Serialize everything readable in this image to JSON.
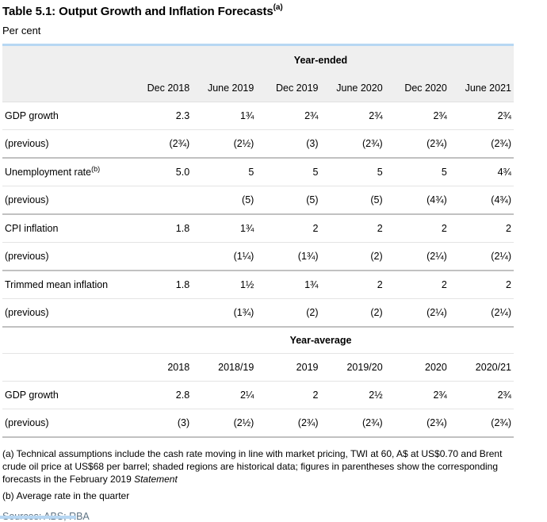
{
  "page": {
    "title": "Table 5.1: Output Growth and Inflation Forecasts",
    "title_footnote_marker": "(a)",
    "subtitle": "Per cent"
  },
  "table": {
    "sections": [
      {
        "header": "Year-ended",
        "columns": [
          "Dec 2018",
          "June 2019",
          "Dec 2019",
          "June 2020",
          "Dec 2020",
          "June 2021"
        ],
        "rows": [
          {
            "label": "GDP growth",
            "label_sup": "",
            "values": [
              "2.3",
              "1¾",
              "2¾",
              "2¾",
              "2¾",
              "2¾"
            ]
          },
          {
            "label": "(previous)",
            "label_sup": "",
            "values": [
              "(2¾)",
              "(2½)",
              "(3)",
              "(2¾)",
              "(2¾)",
              "(2¾)"
            ]
          },
          {
            "label": "Unemployment rate",
            "label_sup": "(b)",
            "values": [
              "5.0",
              "5",
              "5",
              "5",
              "5",
              "4¾"
            ]
          },
          {
            "label": "(previous)",
            "label_sup": "",
            "values": [
              "",
              "(5)",
              "(5)",
              "(5)",
              "(4¾)",
              "(4¾)"
            ]
          },
          {
            "label": "CPI inflation",
            "label_sup": "",
            "values": [
              "1.8",
              "1¾",
              "2",
              "2",
              "2",
              "2"
            ]
          },
          {
            "label": "(previous)",
            "label_sup": "",
            "values": [
              "",
              "(1¼)",
              "(1¾)",
              "(2)",
              "(2¼)",
              "(2¼)"
            ]
          },
          {
            "label": "Trimmed mean inflation",
            "label_sup": "",
            "values": [
              "1.8",
              "1½",
              "1¾",
              "2",
              "2",
              "2"
            ]
          },
          {
            "label": "(previous)",
            "label_sup": "",
            "values": [
              "",
              "(1¾)",
              "(2)",
              "(2)",
              "(2¼)",
              "(2¼)"
            ]
          }
        ]
      },
      {
        "header": "Year-average",
        "columns": [
          "2018",
          "2018/19",
          "2019",
          "2019/20",
          "2020",
          "2020/21"
        ],
        "rows": [
          {
            "label": "GDP growth",
            "label_sup": "",
            "values": [
              "2.8",
              "2¼",
              "2",
              "2½",
              "2¾",
              "2¾"
            ]
          },
          {
            "label": "(previous)",
            "label_sup": "",
            "values": [
              "(3)",
              "(2½)",
              "(2¾)",
              "(2¾)",
              "(2¾)",
              "(2¾)"
            ]
          }
        ]
      }
    ]
  },
  "footnotes": [
    {
      "marker": "(a)",
      "text": "Technical assumptions include the cash rate moving in line with market pricing, TWI at 60, A$ at US$0.70 and Brent crude oil price at US$68 per barrel; shaded regions are historical data; figures in parentheses show the corresponding forecasts in the February 2019 ",
      "italic_text": "Statement"
    },
    {
      "marker": "(b)",
      "text": "Average rate in the quarter",
      "italic_text": ""
    }
  ],
  "sources": "Sources: ABS; RBA",
  "colors": {
    "accent_rule_blue": "#b7d7f3",
    "header_shade_gray": "#efefef",
    "row_divider_gray": "#e4e4e4",
    "section_divider_gray": "#c1c1c1",
    "sources_text": "#5e7384"
  }
}
